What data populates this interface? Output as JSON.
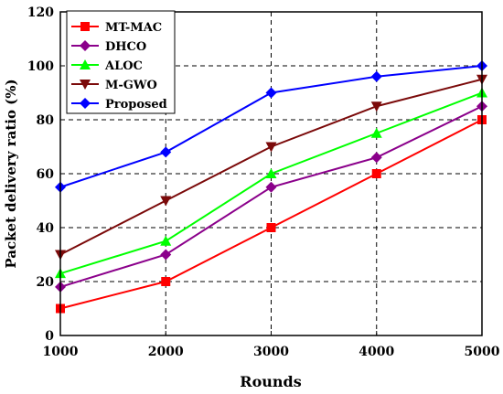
{
  "chart_data": {
    "type": "line",
    "xlabel": "Rounds",
    "ylabel": "Packet delivery ratio (%)",
    "x": [
      1000,
      2000,
      3000,
      4000,
      5000
    ],
    "x_ticks": [
      "1000",
      "2000",
      "3000",
      "4000",
      "5000"
    ],
    "y_ticks": [
      "0",
      "20",
      "40",
      "60",
      "80",
      "100",
      "120"
    ],
    "xlim": [
      1000,
      5000
    ],
    "ylim": [
      0,
      120
    ],
    "grid": true,
    "legend_position": "top-left",
    "series": [
      {
        "name": "MT-MAC",
        "color": "#ff0000",
        "marker": "square",
        "values": [
          10,
          20,
          40,
          60,
          80
        ]
      },
      {
        "name": "DHCO",
        "color": "#8b008b",
        "marker": "diamond",
        "values": [
          18,
          30,
          55,
          66,
          85
        ]
      },
      {
        "name": "ALOC",
        "color": "#00ff00",
        "marker": "triangle-up",
        "values": [
          23,
          35,
          60,
          75,
          90
        ]
      },
      {
        "name": "M-GWO",
        "color": "#7b0a0a",
        "marker": "triangle-down",
        "values": [
          30,
          50,
          70,
          85,
          95
        ]
      },
      {
        "name": "Proposed",
        "color": "#0000ff",
        "marker": "diamond",
        "values": [
          55,
          68,
          90,
          96,
          100
        ]
      }
    ]
  }
}
